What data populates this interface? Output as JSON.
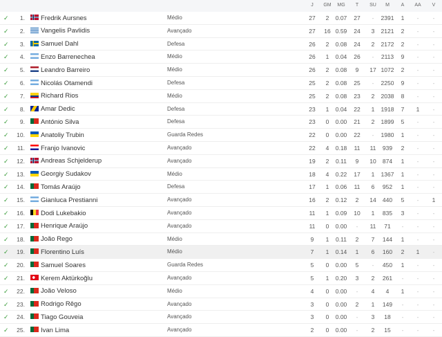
{
  "columns": [
    "J",
    "GM",
    "MG",
    "T",
    "SU",
    "M",
    "A",
    "AA",
    "V"
  ],
  "colors": {
    "check": "#3a9c3a",
    "highlight": "#f0f0f0"
  },
  "players": [
    {
      "rank": "1.",
      "flag": "NO",
      "name": "Fredrik Aursnes",
      "pos": "Médio",
      "stats": [
        "27",
        "2",
        "0.07",
        "27",
        "-",
        "2391",
        "1",
        "-",
        "-"
      ]
    },
    {
      "rank": "2.",
      "flag": "GR",
      "name": "Vangelis Pavlidis",
      "pos": "Avançado",
      "stats": [
        "27",
        "16",
        "0.59",
        "24",
        "3",
        "2121",
        "2",
        "-",
        "-"
      ]
    },
    {
      "rank": "3.",
      "flag": "SE",
      "name": "Samuel Dahl",
      "pos": "Defesa",
      "stats": [
        "26",
        "2",
        "0.08",
        "24",
        "2",
        "2172",
        "2",
        "-",
        "-"
      ]
    },
    {
      "rank": "4.",
      "flag": "AR",
      "name": "Enzo Barrenechea",
      "pos": "Médio",
      "stats": [
        "26",
        "1",
        "0.04",
        "26",
        "-",
        "2113",
        "9",
        "-",
        "-"
      ]
    },
    {
      "rank": "5.",
      "flag": "NL",
      "name": "Leandro Barreiro",
      "pos": "Médio",
      "stats": [
        "26",
        "2",
        "0.08",
        "9",
        "17",
        "1072",
        "2",
        "-",
        "-"
      ]
    },
    {
      "rank": "6.",
      "flag": "AR",
      "name": "Nicolás Otamendi",
      "pos": "Defesa",
      "stats": [
        "25",
        "2",
        "0.08",
        "25",
        "-",
        "2250",
        "9",
        "-",
        "-"
      ]
    },
    {
      "rank": "7.",
      "flag": "CO",
      "name": "Richard Rios",
      "pos": "Médio",
      "stats": [
        "25",
        "2",
        "0.08",
        "23",
        "2",
        "2038",
        "8",
        "-",
        "-"
      ]
    },
    {
      "rank": "8.",
      "flag": "BA",
      "name": "Amar Dedic",
      "pos": "Defesa",
      "stats": [
        "23",
        "1",
        "0.04",
        "22",
        "1",
        "1918",
        "7",
        "1",
        "-"
      ]
    },
    {
      "rank": "9.",
      "flag": "PT",
      "name": "António Silva",
      "pos": "Defesa",
      "stats": [
        "23",
        "0",
        "0.00",
        "21",
        "2",
        "1899",
        "5",
        "-",
        "-"
      ]
    },
    {
      "rank": "10.",
      "flag": "UA",
      "name": "Anatoliy Trubin",
      "pos": "Guarda Redes",
      "stats": [
        "22",
        "0",
        "0.00",
        "22",
        "-",
        "1980",
        "1",
        "-",
        "-"
      ]
    },
    {
      "rank": "11.",
      "flag": "HR",
      "name": "Franjo Ivanovic",
      "pos": "Avançado",
      "stats": [
        "22",
        "4",
        "0.18",
        "11",
        "11",
        "939",
        "2",
        "-",
        "-"
      ]
    },
    {
      "rank": "12.",
      "flag": "NO",
      "name": "Andreas Schjelderup",
      "pos": "Avançado",
      "stats": [
        "19",
        "2",
        "0.11",
        "9",
        "10",
        "874",
        "1",
        "-",
        "-"
      ]
    },
    {
      "rank": "13.",
      "flag": "UA",
      "name": "Georgiy Sudakov",
      "pos": "Médio",
      "stats": [
        "18",
        "4",
        "0.22",
        "17",
        "1",
        "1367",
        "1",
        "-",
        "-"
      ]
    },
    {
      "rank": "14.",
      "flag": "PT",
      "name": "Tomás Araújo",
      "pos": "Defesa",
      "stats": [
        "17",
        "1",
        "0.06",
        "11",
        "6",
        "952",
        "1",
        "-",
        "-"
      ]
    },
    {
      "rank": "15.",
      "flag": "AR",
      "name": "Gianluca Prestianni",
      "pos": "Avançado",
      "stats": [
        "16",
        "2",
        "0.12",
        "2",
        "14",
        "440",
        "5",
        "-",
        "1"
      ]
    },
    {
      "rank": "16.",
      "flag": "BE",
      "name": "Dodi Lukebakio",
      "pos": "Avançado",
      "stats": [
        "11",
        "1",
        "0.09",
        "10",
        "1",
        "835",
        "3",
        "-",
        "-"
      ]
    },
    {
      "rank": "17.",
      "flag": "PT",
      "name": "Henrique Araújo",
      "pos": "Avançado",
      "stats": [
        "11",
        "0",
        "0.00",
        "-",
        "11",
        "71",
        "-",
        "-",
        "-"
      ]
    },
    {
      "rank": "18.",
      "flag": "PT",
      "name": "João Rego",
      "pos": "Médio",
      "stats": [
        "9",
        "1",
        "0.11",
        "2",
        "7",
        "144",
        "1",
        "-",
        "-"
      ]
    },
    {
      "rank": "19.",
      "flag": "PT",
      "name": "Florentino Luís",
      "pos": "Médio",
      "stats": [
        "7",
        "1",
        "0.14",
        "1",
        "6",
        "160",
        "2",
        "1",
        "-"
      ],
      "highlight": true
    },
    {
      "rank": "20.",
      "flag": "PT",
      "name": "Samuel Soares",
      "pos": "Guarda Redes",
      "stats": [
        "5",
        "0",
        "0.00",
        "5",
        "-",
        "450",
        "1",
        "-",
        "-"
      ]
    },
    {
      "rank": "21.",
      "flag": "TR",
      "name": "Kerem Aktürkoğlu",
      "pos": "Avançado",
      "stats": [
        "5",
        "1",
        "0.20",
        "3",
        "2",
        "261",
        "-",
        "-",
        "-"
      ]
    },
    {
      "rank": "22.",
      "flag": "PT",
      "name": "João Veloso",
      "pos": "Médio",
      "stats": [
        "4",
        "0",
        "0.00",
        "-",
        "4",
        "4",
        "1",
        "-",
        "-"
      ]
    },
    {
      "rank": "23.",
      "flag": "PT",
      "name": "Rodrigo Rêgo",
      "pos": "Avançado",
      "stats": [
        "3",
        "0",
        "0.00",
        "2",
        "1",
        "149",
        "-",
        "-",
        "-"
      ]
    },
    {
      "rank": "24.",
      "flag": "PT",
      "name": "Tiago Gouveia",
      "pos": "Avançado",
      "stats": [
        "3",
        "0",
        "0.00",
        "-",
        "3",
        "18",
        "-",
        "-",
        "-"
      ]
    },
    {
      "rank": "25.",
      "flag": "PT",
      "name": "Ivan Lima",
      "pos": "Avançado",
      "stats": [
        "2",
        "0",
        "0.00",
        "-",
        "2",
        "15",
        "-",
        "-",
        "-"
      ]
    }
  ]
}
